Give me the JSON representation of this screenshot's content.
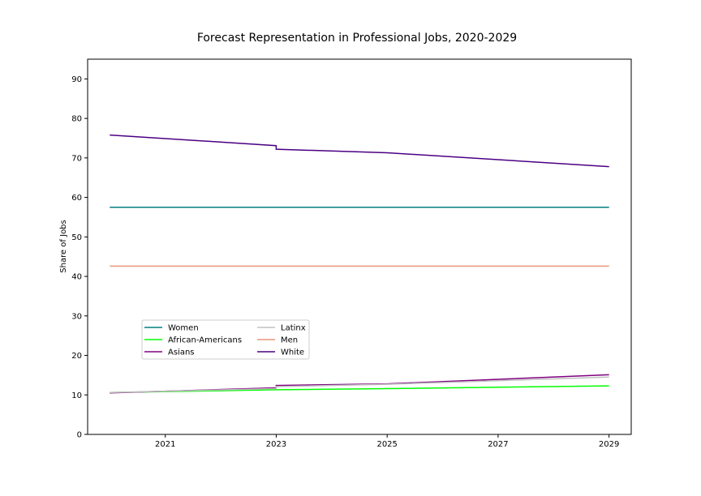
{
  "chart_data": {
    "type": "line",
    "title": "Forecast Representation in Professional Jobs, 2020-2029",
    "xlabel": "",
    "ylabel": "Share of Jobs",
    "xlim": [
      2019.6,
      2029.4
    ],
    "ylim": [
      0,
      95
    ],
    "xticks": [
      2021,
      2023,
      2025,
      2027,
      2029
    ],
    "yticks": [
      0,
      10,
      20,
      30,
      40,
      50,
      60,
      70,
      80,
      90
    ],
    "grid": false,
    "legend_position": "lower-left",
    "legend_columns": 2,
    "series": [
      {
        "name": "Women",
        "color": "#008080",
        "points": [
          [
            2020,
            57.5
          ],
          [
            2029,
            57.5
          ]
        ]
      },
      {
        "name": "African-Americans",
        "color": "#00ff00",
        "points": [
          [
            2020,
            10.6
          ],
          [
            2023,
            11.3
          ],
          [
            2025,
            11.6
          ],
          [
            2029,
            12.3
          ]
        ]
      },
      {
        "name": "Asians",
        "color": "#800080",
        "points": [
          [
            2020,
            10.5
          ],
          [
            2023,
            11.8
          ],
          [
            2023,
            12.4
          ],
          [
            2025,
            12.8
          ],
          [
            2029,
            15.1
          ]
        ]
      },
      {
        "name": "Latinx",
        "color": "#c0c0c0",
        "points": [
          [
            2020,
            10.6
          ],
          [
            2023,
            11.6
          ],
          [
            2023,
            12.1
          ],
          [
            2025,
            12.7
          ],
          [
            2029,
            14.5
          ]
        ]
      },
      {
        "name": "Men",
        "color": "#e9967a",
        "points": [
          [
            2020,
            42.6
          ],
          [
            2029,
            42.6
          ]
        ]
      },
      {
        "name": "White",
        "color": "#4b0082",
        "points": [
          [
            2020,
            75.8
          ],
          [
            2023,
            73.1
          ],
          [
            2023,
            72.2
          ],
          [
            2025,
            71.3
          ],
          [
            2029,
            67.8
          ]
        ]
      }
    ]
  }
}
